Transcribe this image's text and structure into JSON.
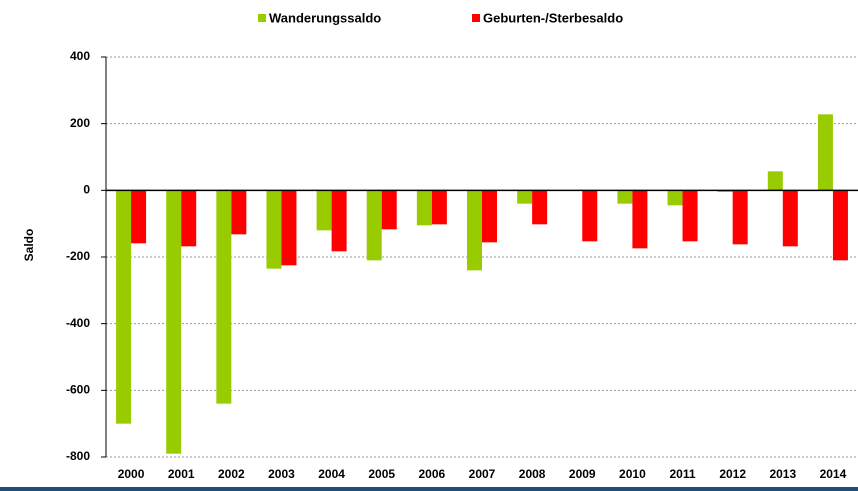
{
  "chart_data": {
    "type": "bar",
    "y_label": "Saldo",
    "categories": [
      "2000",
      "2001",
      "2002",
      "2003",
      "2004",
      "2005",
      "2006",
      "2007",
      "2008",
      "2009",
      "2010",
      "2011",
      "2012",
      "2013",
      "2014"
    ],
    "series": [
      {
        "name": "Wanderungssaldo",
        "color": "#99cc00",
        "values": [
          -700,
          -790,
          -640,
          -235,
          -120,
          -210,
          -105,
          -240,
          -40,
          -2,
          -40,
          -45,
          -5,
          57,
          228
        ]
      },
      {
        "name": "Geburten-/Sterbesaldo",
        "color": "#ff0000",
        "values": [
          -159,
          -168,
          -132,
          -225,
          -183,
          -117,
          -102,
          -156,
          -102,
          -153,
          -174,
          -153,
          -162,
          -168,
          -210
        ]
      }
    ],
    "ylim": [
      -800,
      400
    ],
    "yticks": [
      -800,
      -600,
      -400,
      -200,
      0,
      200,
      400
    ],
    "grid": true,
    "legend": "top"
  }
}
